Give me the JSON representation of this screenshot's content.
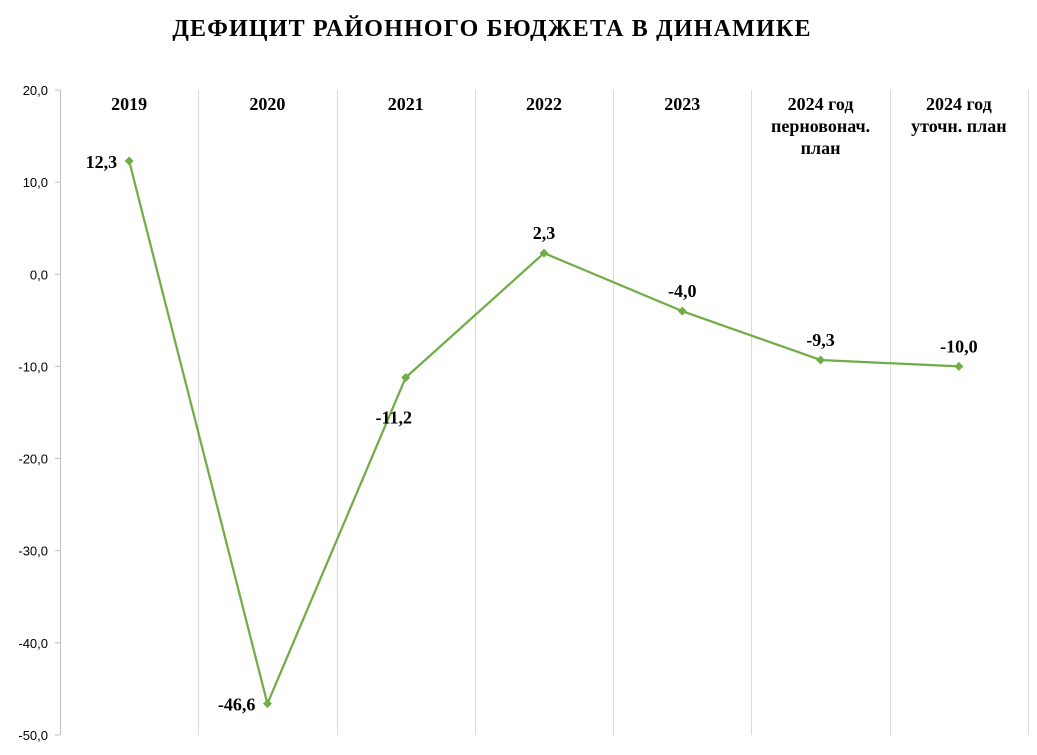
{
  "chart_data": {
    "type": "line",
    "title": "ДЕФИЦИТ РАЙОННОГО БЮДЖЕТА В ДИНАМИКЕ",
    "xlabel": "",
    "ylabel": "",
    "categories": [
      [
        "2019"
      ],
      [
        "2020"
      ],
      [
        "2021"
      ],
      [
        "2022"
      ],
      [
        "2023"
      ],
      [
        "2024 год",
        "перновонач.",
        "план"
      ],
      [
        "2024 год",
        "уточн. план"
      ]
    ],
    "series": [
      {
        "values": [
          12.3,
          -46.6,
          -11.2,
          2.3,
          -4.0,
          -9.3,
          -10.0
        ]
      }
    ],
    "data_labels": [
      "12,3",
      "-46,6",
      "-11,2",
      "2,3",
      "-4,0",
      "-9,3",
      "-10,0"
    ],
    "ylim": [
      -50,
      20
    ],
    "yticks": [
      20,
      10,
      0,
      -10,
      -20,
      -30,
      -40,
      -50
    ],
    "ytick_labels": [
      "20,0",
      "10,0",
      "0,0",
      "-10,0",
      "-20,0",
      "-30,0",
      "-40,0",
      "-50,0"
    ],
    "grid": "vertical",
    "legend": "none",
    "colors": {
      "line": "#70AD47",
      "grid": "#D9D9D9",
      "axis": "#BFBFBF",
      "text": "#000000"
    }
  }
}
